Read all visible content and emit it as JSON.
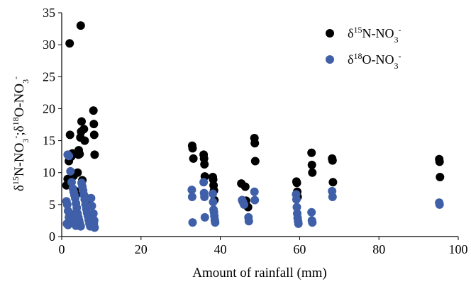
{
  "chart_data": {
    "type": "scatter",
    "xlabel": "Amount of rainfall (mm)",
    "ylabel": {
      "parts": [
        {
          "t": "δ"
        },
        {
          "t": "15",
          "s": "sup"
        },
        {
          "t": "N-NO"
        },
        {
          "t": "3",
          "s": "sub"
        },
        {
          "t": "-",
          "s": "sup"
        },
        {
          "t": ";δ"
        },
        {
          "t": "18",
          "s": "sup"
        },
        {
          "t": "O-NO"
        },
        {
          "t": "3",
          "s": "sub"
        },
        {
          "t": "-",
          "s": "sup"
        }
      ]
    },
    "xlim": [
      0,
      100
    ],
    "ylim": [
      0,
      35
    ],
    "xticks": [
      0,
      20,
      40,
      60,
      80,
      100
    ],
    "yticks": [
      0,
      5,
      10,
      15,
      20,
      25,
      30,
      35
    ],
    "grid": false,
    "legend_position": "top-right",
    "series": [
      {
        "name_parts": [
          {
            "t": "δ"
          },
          {
            "t": "15",
            "s": "sup"
          },
          {
            "t": "N-NO"
          },
          {
            "t": "3",
            "s": "sub"
          },
          {
            "t": "-",
            "s": "sup"
          }
        ],
        "color": "#000000",
        "points": [
          [
            2,
            30.2
          ],
          [
            4.8,
            33
          ],
          [
            1.2,
            8
          ],
          [
            1.5,
            9
          ],
          [
            1.8,
            11.8
          ],
          [
            2.1,
            15.9
          ],
          [
            2.4,
            12.5
          ],
          [
            2.7,
            13
          ],
          [
            3,
            9.5
          ],
          [
            3.3,
            7.2
          ],
          [
            3.6,
            6.5
          ],
          [
            4,
            10
          ],
          [
            4.2,
            12.8
          ],
          [
            4.3,
            13.5
          ],
          [
            4.5,
            12.9
          ],
          [
            4.7,
            15.5
          ],
          [
            4.9,
            16.4
          ],
          [
            5,
            18
          ],
          [
            5.2,
            8.8
          ],
          [
            5.4,
            6.8
          ],
          [
            5.6,
            16.8
          ],
          [
            5.8,
            15
          ],
          [
            6.2,
            6
          ],
          [
            6.6,
            5.5
          ],
          [
            7,
            5
          ],
          [
            8,
            19.7
          ],
          [
            8.1,
            17.6
          ],
          [
            8.2,
            15.9
          ],
          [
            8.3,
            12.8
          ],
          [
            32.9,
            14.2
          ],
          [
            33,
            13.8
          ],
          [
            33.2,
            12.2
          ],
          [
            35.8,
            12.8
          ],
          [
            35.9,
            12.2
          ],
          [
            36,
            11.3
          ],
          [
            36.1,
            9.4
          ],
          [
            38.1,
            9.3
          ],
          [
            38.2,
            8.9
          ],
          [
            38.3,
            8
          ],
          [
            38.4,
            7.2
          ],
          [
            38.5,
            5.7
          ],
          [
            45.3,
            8.3
          ],
          [
            46.3,
            7.8
          ],
          [
            46.5,
            5.6
          ],
          [
            47,
            4.6
          ],
          [
            48.6,
            15.4
          ],
          [
            48.7,
            14.6
          ],
          [
            48.8,
            11.8
          ],
          [
            59.2,
            8.6
          ],
          [
            59.3,
            8.4
          ],
          [
            59.4,
            7
          ],
          [
            59.5,
            6.2
          ],
          [
            63,
            13.1
          ],
          [
            63.1,
            11.2
          ],
          [
            63.2,
            10
          ],
          [
            68.2,
            12.2
          ],
          [
            68.3,
            11.9
          ],
          [
            68.4,
            8.5
          ],
          [
            95.2,
            12.1
          ],
          [
            95.3,
            11.7
          ],
          [
            95.4,
            9.3
          ]
        ]
      },
      {
        "name_parts": [
          {
            "t": "δ"
          },
          {
            "t": "18",
            "s": "sup"
          },
          {
            "t": "O-NO"
          },
          {
            "t": "3",
            "s": "sub"
          },
          {
            "t": "-",
            "s": "sup"
          }
        ],
        "color": "#3F5FA8",
        "points": [
          [
            1.5,
            12.8
          ],
          [
            1.8,
            12.6
          ],
          [
            2.2,
            10.2
          ],
          [
            1.2,
            5.5
          ],
          [
            1.4,
            5
          ],
          [
            1.6,
            4
          ],
          [
            1.8,
            3
          ],
          [
            2,
            2.5
          ],
          [
            1.3,
            2
          ],
          [
            1.6,
            1.8
          ],
          [
            2.5,
            8.5
          ],
          [
            2.8,
            7.5
          ],
          [
            3,
            7
          ],
          [
            3.2,
            6.5
          ],
          [
            3.4,
            6
          ],
          [
            3.6,
            5.2
          ],
          [
            3.8,
            4.5
          ],
          [
            4,
            3.6
          ],
          [
            4.2,
            3
          ],
          [
            4.4,
            2.5
          ],
          [
            4.6,
            2
          ],
          [
            4.8,
            1.6
          ],
          [
            3.6,
            1.7
          ],
          [
            3.2,
            2.2
          ],
          [
            2.8,
            2.7
          ],
          [
            2.6,
            3.5
          ],
          [
            5,
            8.4
          ],
          [
            5.2,
            7.8
          ],
          [
            5.4,
            7.2
          ],
          [
            5.6,
            6.5
          ],
          [
            5.8,
            5.8
          ],
          [
            6,
            5
          ],
          [
            6.2,
            4.3
          ],
          [
            6.4,
            3.7
          ],
          [
            6.6,
            3.2
          ],
          [
            6.8,
            2.6
          ],
          [
            7,
            2
          ],
          [
            7.2,
            1.6
          ],
          [
            7.4,
            6
          ],
          [
            7.6,
            4.8
          ],
          [
            7.8,
            3
          ],
          [
            8,
            3.6
          ],
          [
            8.2,
            2.5
          ],
          [
            8.3,
            1.4
          ],
          [
            8.1,
            2
          ],
          [
            32.8,
            7.3
          ],
          [
            32.9,
            6.2
          ],
          [
            33,
            2.2
          ],
          [
            35.8,
            8.5
          ],
          [
            35.9,
            6.8
          ],
          [
            36,
            6.2
          ],
          [
            36.1,
            3
          ],
          [
            38.1,
            6.7
          ],
          [
            38.2,
            5.4
          ],
          [
            38.3,
            4.2
          ],
          [
            38.4,
            3.8
          ],
          [
            38.5,
            3.2
          ],
          [
            38.6,
            2.6
          ],
          [
            38.7,
            2.2
          ],
          [
            45.5,
            5.7
          ],
          [
            45.7,
            5.4
          ],
          [
            46,
            5
          ],
          [
            47.1,
            3
          ],
          [
            47.2,
            2.4
          ],
          [
            48.6,
            7
          ],
          [
            48.7,
            5.7
          ],
          [
            59.1,
            6.6
          ],
          [
            59.2,
            5.8
          ],
          [
            59.3,
            4.6
          ],
          [
            59.4,
            3.6
          ],
          [
            59.5,
            2.9
          ],
          [
            59.6,
            2.4
          ],
          [
            59.7,
            2
          ],
          [
            63,
            3.8
          ],
          [
            63.1,
            2.5
          ],
          [
            63.2,
            2.2
          ],
          [
            68.2,
            7.1
          ],
          [
            68.3,
            6.2
          ],
          [
            95.2,
            5.3
          ],
          [
            95.3,
            5
          ]
        ]
      }
    ]
  }
}
